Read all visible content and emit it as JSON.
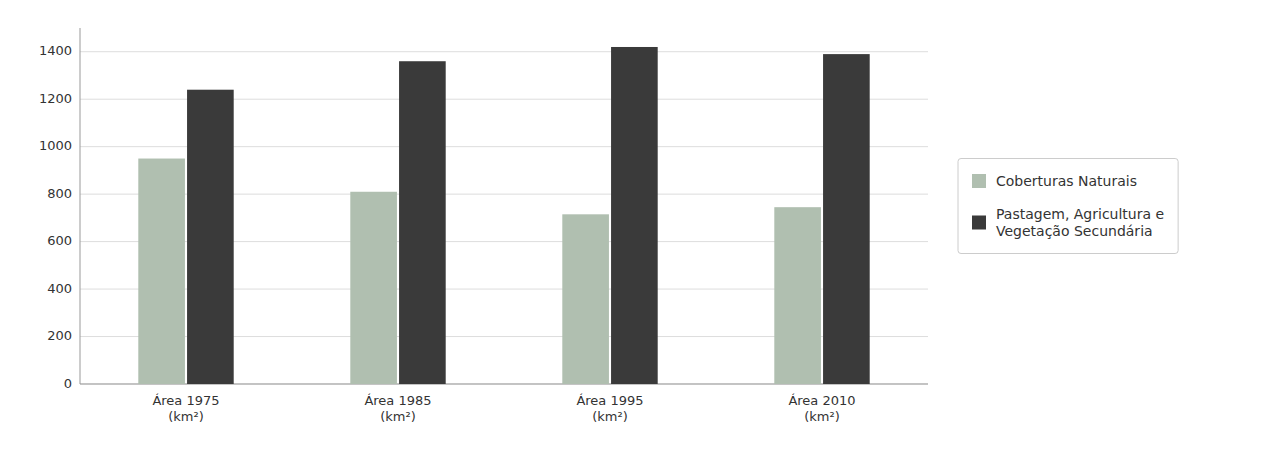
{
  "chart_data": {
    "type": "bar",
    "categories": [
      "Área 1975\n(km²)",
      "Área 1985\n(km²)",
      "Área 1995\n(km²)",
      "Área 2010\n(km²)"
    ],
    "series": [
      {
        "name": "Coberturas Naturais",
        "color": "#b0bfb0",
        "values": [
          950,
          810,
          715,
          745
        ]
      },
      {
        "name": "Pastagem, Agricultura e\nVegetação Secundária",
        "color": "#3a3a3a",
        "values": [
          1240,
          1360,
          1420,
          1390
        ]
      }
    ],
    "ylim": [
      0,
      1500
    ],
    "yticks": [
      0,
      200,
      400,
      600,
      800,
      1000,
      1200,
      1400
    ],
    "grid": true,
    "legend": "right"
  }
}
